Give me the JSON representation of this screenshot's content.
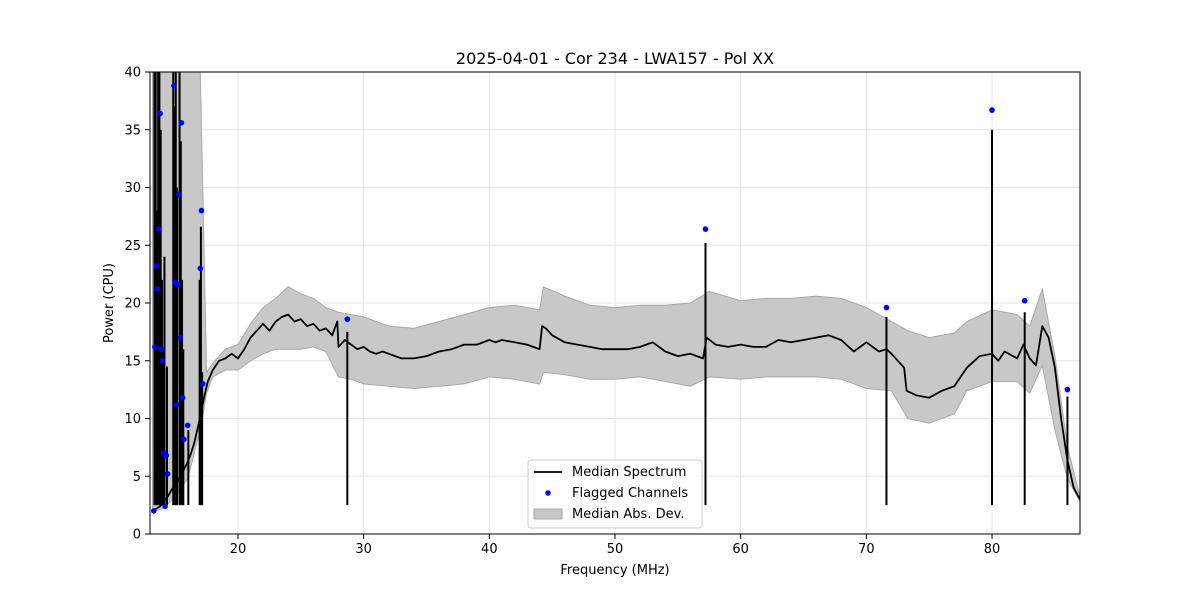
{
  "chart_data": {
    "type": "line",
    "title": "2025-04-01 - Cor 234 - LWA157 - Pol XX",
    "xlabel": "Frequency (MHz)",
    "ylabel": "Power (CPU)",
    "xlim": [
      13,
      87
    ],
    "ylim": [
      0,
      40
    ],
    "xticks": [
      20,
      30,
      40,
      50,
      60,
      70,
      80
    ],
    "xtick_labels": [
      "20",
      "30",
      "40",
      "50",
      "60",
      "70",
      "80"
    ],
    "yticks": [
      0,
      5,
      10,
      15,
      20,
      25,
      30,
      35,
      40
    ],
    "ytick_labels": [
      "0",
      "5",
      "10",
      "15",
      "20",
      "25",
      "30",
      "35",
      "40"
    ],
    "grid": true,
    "legend": {
      "position": "bottom-center",
      "entries": [
        "Median Spectrum",
        "Flagged Channels",
        "Median Abs. Dev."
      ]
    },
    "colors": {
      "median": "#000000",
      "flagged": "#0000ff",
      "mad_fill": "#c8c8c8",
      "mad_edge": "#a8a8a8",
      "grid": "#e6e6e6"
    },
    "series": [
      {
        "name": "Median Spectrum",
        "style": "line",
        "x": [
          13.2,
          13.5,
          13.8,
          14.1,
          14.4,
          14.7,
          15.0,
          15.3,
          15.6,
          15.9,
          16.2,
          16.5,
          16.8,
          17.0,
          17.3,
          17.6,
          18.0,
          18.5,
          19.0,
          19.5,
          20.0,
          20.5,
          21.0,
          21.5,
          22.0,
          22.5,
          23.0,
          23.5,
          24.0,
          24.5,
          25.0,
          25.5,
          26.0,
          26.5,
          27.0,
          27.5,
          27.9,
          28.0,
          28.5,
          29.0,
          29.5,
          30.0,
          30.5,
          31.0,
          31.5,
          32.0,
          32.5,
          33.0,
          34.0,
          35.0,
          36.0,
          37.0,
          38.0,
          39.0,
          40.0,
          40.5,
          41.0,
          42.0,
          43.0,
          44.0,
          44.2,
          44.5,
          45.0,
          46.0,
          47.0,
          48.0,
          49.0,
          50.0,
          51.0,
          52.0,
          53.0,
          54.0,
          55.0,
          56.0,
          57.0,
          57.3,
          58.0,
          59.0,
          60.0,
          61.0,
          62.0,
          63.0,
          64.0,
          65.0,
          66.0,
          67.0,
          68.0,
          69.0,
          70.0,
          71.0,
          71.6,
          72.0,
          73.0,
          73.2,
          74.0,
          75.0,
          76.0,
          77.0,
          77.5,
          78.0,
          79.0,
          80.0,
          80.5,
          81.0,
          82.0,
          82.5,
          83.0,
          83.5,
          84.0,
          84.5,
          85.0,
          85.5,
          86.0,
          86.5,
          87.0
        ],
        "y": [
          2.0,
          2.2,
          2.4,
          2.8,
          3.2,
          3.8,
          4.2,
          4.8,
          5.4,
          6.0,
          6.8,
          7.8,
          9.2,
          10.2,
          11.8,
          13.2,
          14.2,
          15.0,
          15.2,
          15.6,
          15.2,
          16.0,
          17.0,
          17.6,
          18.2,
          17.6,
          18.4,
          18.8,
          19.0,
          18.4,
          18.6,
          18.0,
          18.2,
          17.6,
          17.8,
          17.2,
          18.4,
          16.2,
          16.8,
          16.4,
          16.0,
          16.2,
          15.8,
          15.6,
          15.8,
          15.6,
          15.4,
          15.2,
          15.2,
          15.4,
          15.8,
          16.0,
          16.4,
          16.4,
          16.8,
          16.6,
          16.8,
          16.6,
          16.4,
          16.0,
          18.0,
          17.8,
          17.2,
          16.6,
          16.4,
          16.2,
          16.0,
          16.0,
          16.0,
          16.2,
          16.6,
          15.8,
          15.4,
          15.6,
          15.2,
          17.0,
          16.4,
          16.2,
          16.4,
          16.2,
          16.2,
          16.8,
          16.6,
          16.8,
          17.0,
          17.2,
          16.8,
          15.8,
          16.6,
          15.8,
          16.0,
          15.6,
          14.4,
          12.4,
          12.0,
          11.8,
          12.4,
          12.8,
          13.6,
          14.4,
          15.4,
          15.6,
          15.0,
          15.8,
          15.2,
          16.4,
          15.2,
          14.6,
          18.0,
          17.0,
          14.4,
          10.0,
          6.4,
          4.0,
          3.0
        ]
      },
      {
        "name": "Median Abs. Dev.",
        "style": "band",
        "x": [
          13.2,
          14.0,
          15.0,
          16.0,
          17.0,
          17.5,
          18.0,
          19.0,
          20.0,
          21.0,
          22.0,
          23.0,
          24.0,
          25.0,
          26.0,
          27.0,
          28.0,
          29.0,
          30.0,
          32.0,
          34.0,
          36.0,
          38.0,
          40.0,
          42.0,
          44.0,
          44.3,
          46.0,
          48.0,
          50.0,
          52.0,
          54.0,
          56.0,
          57.5,
          60.0,
          62.0,
          64.0,
          66.0,
          68.0,
          70.0,
          72.0,
          73.3,
          75.0,
          77.0,
          78.0,
          80.0,
          82.0,
          83.0,
          84.0,
          85.0,
          86.0,
          87.0
        ],
        "low": [
          1.9,
          2.2,
          3.2,
          4.8,
          9.0,
          12.2,
          13.6,
          14.2,
          14.2,
          15.0,
          15.6,
          16.0,
          16.0,
          16.0,
          16.2,
          15.8,
          13.6,
          13.4,
          13.0,
          12.8,
          12.6,
          12.8,
          13.0,
          13.6,
          13.4,
          13.0,
          14.0,
          13.8,
          13.4,
          13.4,
          13.6,
          13.2,
          12.8,
          13.6,
          13.4,
          13.6,
          13.6,
          13.6,
          13.4,
          12.6,
          12.4,
          10.0,
          9.6,
          10.4,
          12.4,
          13.2,
          13.2,
          12.2,
          14.6,
          9.0,
          4.8,
          2.8
        ],
        "high": [
          40.0,
          40.0,
          40.0,
          40.0,
          40.0,
          14.0,
          14.8,
          16.0,
          16.4,
          18.2,
          19.6,
          20.4,
          21.4,
          20.8,
          20.4,
          19.6,
          19.2,
          19.0,
          18.8,
          18.0,
          17.8,
          18.4,
          19.0,
          19.6,
          19.8,
          19.4,
          21.4,
          20.6,
          19.8,
          19.6,
          19.8,
          19.8,
          20.0,
          21.0,
          20.2,
          20.4,
          20.4,
          20.6,
          20.4,
          19.6,
          18.4,
          17.6,
          17.0,
          17.4,
          18.4,
          19.4,
          19.0,
          18.0,
          21.2,
          15.4,
          7.6,
          3.2
        ]
      },
      {
        "name": "Flagged Channels",
        "style": "scatter",
        "x": [
          13.3,
          13.4,
          13.5,
          13.6,
          13.7,
          13.8,
          13.9,
          14.0,
          14.1,
          14.2,
          14.3,
          14.4,
          14.9,
          15.0,
          15.1,
          15.2,
          15.3,
          15.4,
          15.5,
          15.6,
          15.7,
          16.0,
          17.0,
          17.1,
          17.2,
          28.7,
          57.2,
          71.6,
          80.0,
          82.6,
          86.0
        ],
        "y": [
          2.0,
          16.2,
          23.2,
          21.2,
          26.4,
          36.4,
          16.0,
          15.0,
          7.0,
          2.4,
          6.8,
          5.2,
          38.8,
          21.8,
          11.2,
          21.6,
          29.4,
          17.0,
          35.6,
          11.8,
          8.2,
          9.4,
          23.0,
          28.0,
          13.0,
          18.6,
          26.4,
          19.6,
          36.7,
          20.2,
          12.5
        ]
      }
    ],
    "spikes": {
      "x": [
        13.35,
        13.45,
        13.55,
        13.65,
        13.75,
        13.85,
        13.95,
        14.05,
        14.15,
        14.35,
        14.85,
        14.95,
        15.05,
        15.15,
        15.35,
        15.45,
        15.55,
        15.65,
        16.05,
        16.95,
        17.05,
        17.15,
        28.7,
        57.2,
        71.6,
        80.0,
        82.6,
        86.0
      ],
      "y": [
        40.0,
        40.0,
        28.0,
        40.0,
        40.0,
        35.0,
        22.0,
        16.0,
        24.0,
        14.5,
        40.0,
        37.0,
        40.0,
        30.0,
        40.0,
        34.0,
        22.0,
        16.0,
        9.0,
        22.0,
        26.6,
        14.0,
        17.5,
        25.2,
        18.8,
        35.0,
        19.2,
        11.9
      ]
    }
  }
}
